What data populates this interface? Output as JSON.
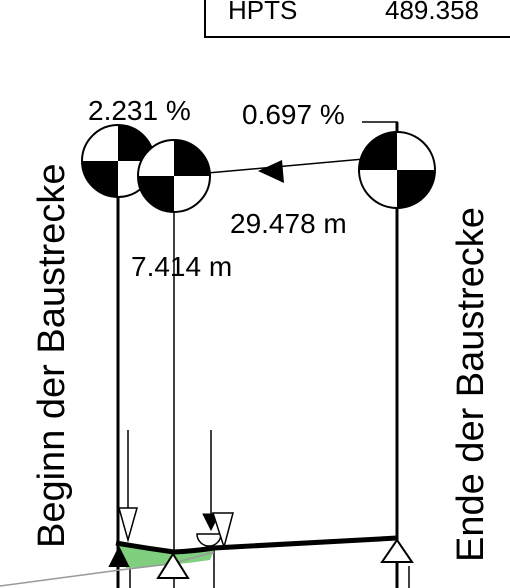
{
  "header_box": {
    "left_text": "HPTS",
    "right_text": "489.358"
  },
  "labels": {
    "begin": "Beginn der Baustrecke",
    "end": "Ende der Baustrecke"
  },
  "gradients": {
    "left": "2.231 %",
    "right": "0.697 %"
  },
  "distances": {
    "long": "29.478 m",
    "short": "7.414 m"
  },
  "colors": {
    "line": "#000000",
    "fill_area": "#7fcf7f",
    "ground_line": "#9a9a9a"
  }
}
